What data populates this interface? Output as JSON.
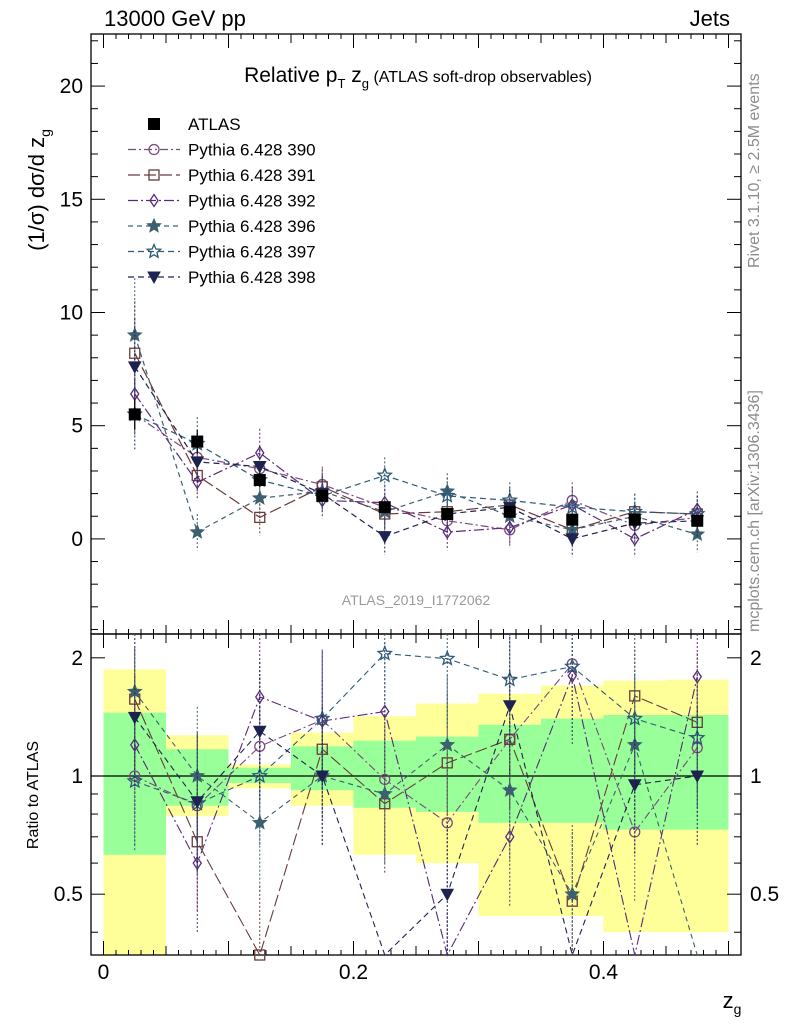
{
  "header": {
    "left": "13000 GeV pp",
    "right": "Jets"
  },
  "side_labels": {
    "rivet": "Rivet 3.1.10, ≥ 2.5M events",
    "mcplots": "mcplots.cern.ch [arXiv:1306.3436]"
  },
  "watermark": "ATLAS_2019_I1772062",
  "chart_data": {
    "type": "scatter",
    "title": "Relative pT zg (ATLAS soft-drop observables)",
    "title_parts": {
      "main": "Relative p",
      "sub": "T",
      "var": " z",
      "var_sub": "g",
      "note": "(ATLAS soft-drop observables)"
    },
    "ylabel": "(1/σ) dσ/d z",
    "ylabel_sub": "g",
    "xlabel": "z",
    "xlabel_sub": "g",
    "ratio_ylabel": "Ratio to ATLAS",
    "xlim": [
      -0.01,
      0.51
    ],
    "ylim": [
      -4.2,
      22.3
    ],
    "ratio_ylim": [
      0.35,
      2.3
    ],
    "x_ticks": [
      "0",
      "0.2",
      "0.4"
    ],
    "y_ticks": [
      "0",
      "5",
      "10",
      "15",
      "20"
    ],
    "ratio_ticks": [
      "0.5",
      "1",
      "2"
    ],
    "x": [
      0.025,
      0.075,
      0.125,
      0.175,
      0.225,
      0.275,
      0.325,
      0.375,
      0.425,
      0.475
    ],
    "data": {
      "name": "ATLAS",
      "values": [
        5.5,
        4.3,
        2.6,
        1.9,
        1.4,
        1.1,
        1.2,
        0.85,
        0.85,
        0.8
      ],
      "band_inner": [
        [
          0.63,
          1.45
        ],
        [
          0.84,
          1.17
        ],
        [
          0.96,
          1.05
        ],
        [
          0.92,
          1.19
        ],
        [
          0.83,
          1.23
        ],
        [
          0.81,
          1.26
        ],
        [
          0.76,
          1.35
        ],
        [
          0.76,
          1.4
        ],
        [
          0.73,
          1.43
        ],
        [
          0.73,
          1.43
        ]
      ],
      "band_outer": [
        [
          0.3,
          1.87
        ],
        [
          0.79,
          1.27
        ],
        [
          0.93,
          1.07
        ],
        [
          0.84,
          1.29
        ],
        [
          0.63,
          1.42
        ],
        [
          0.6,
          1.53
        ],
        [
          0.44,
          1.62
        ],
        [
          0.44,
          1.7
        ],
        [
          0.4,
          1.75
        ],
        [
          0.4,
          1.76
        ]
      ]
    },
    "series": [
      {
        "name": "Pythia 6.428 390",
        "color": "#7b4a80",
        "marker": "circle",
        "dash": "8,3,2,3",
        "values": [
          5.5,
          3.6,
          3.1,
          2.4,
          1.4,
          0.8,
          0.4,
          1.7,
          0.6,
          0.95
        ],
        "ratio": [
          1.0,
          0.84,
          1.19,
          1.39,
          0.98,
          0.76,
          1.24,
          1.93,
          0.72,
          1.18
        ]
      },
      {
        "name": "Pythia 6.428 391",
        "color": "#6a3a3a",
        "marker": "square",
        "dash": "12,4",
        "values": [
          8.2,
          2.8,
          0.95,
          2.3,
          1.1,
          1.2,
          1.5,
          0.4,
          1.2,
          1.1
        ],
        "ratio": [
          1.57,
          0.68,
          0.35,
          1.17,
          0.85,
          1.08,
          1.24,
          0.48,
          1.6,
          1.37
        ]
      },
      {
        "name": "Pythia 6.428 392",
        "color": "#5a2a7a",
        "marker": "diamond",
        "dash": "10,3,2,3",
        "values": [
          6.4,
          2.5,
          3.8,
          1.7,
          1.6,
          0.3,
          0.5,
          1.5,
          0.0,
          1.3
        ],
        "ratio": [
          1.2,
          0.6,
          1.59,
          1.38,
          1.46,
          0.3,
          0.7,
          1.8,
          0.1,
          1.79
        ]
      },
      {
        "name": "Pythia 6.428 396",
        "color": "#3d6070",
        "marker": "star",
        "dash": "5,4",
        "values": [
          9.0,
          0.3,
          1.8,
          2.1,
          1.2,
          2.1,
          1.0,
          0.4,
          1.0,
          0.2
        ],
        "ratio": [
          1.64,
          1.0,
          0.76,
          1.0,
          0.9,
          1.2,
          0.92,
          0.5,
          1.2,
          0.2
        ]
      },
      {
        "name": "Pythia 6.428 397",
        "color": "#2c5a78",
        "marker": "star-open",
        "dash": "6,4",
        "values": [
          5.5,
          4.2,
          2.6,
          1.9,
          2.8,
          1.9,
          1.7,
          1.4,
          1.2,
          1.1
        ],
        "ratio": [
          0.97,
          0.85,
          1.0,
          1.4,
          2.05,
          1.99,
          1.76,
          1.9,
          1.4,
          1.25
        ]
      },
      {
        "name": "Pythia 6.428 398",
        "color": "#1e2250",
        "marker": "triangle-down",
        "dash": "6,4",
        "values": [
          7.6,
          3.4,
          3.2,
          2.0,
          0.1,
          1.1,
          1.4,
          0.0,
          0.7,
          0.8
        ],
        "ratio": [
          1.41,
          0.86,
          1.3,
          1.0,
          0.08,
          0.5,
          1.51,
          0.0,
          0.95,
          1.0
        ]
      }
    ]
  }
}
